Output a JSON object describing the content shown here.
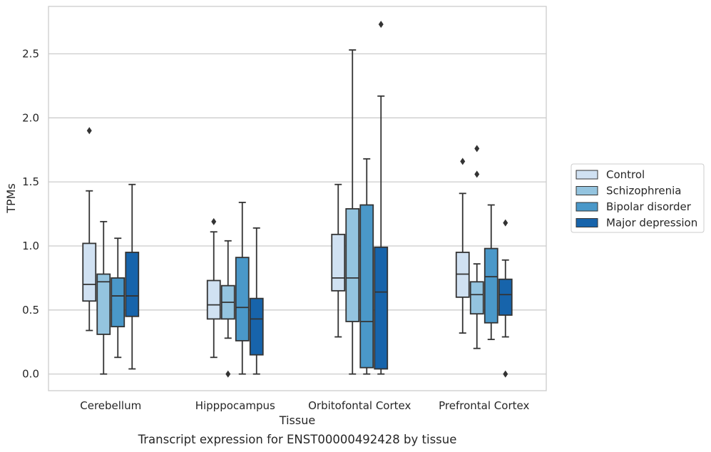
{
  "caption": "Transcript expression for ENST00000492428 by tissue",
  "chart_data": {
    "type": "box",
    "title": "",
    "xlabel": "Tissue",
    "ylabel": "TPMs",
    "ylim": [
      -0.13,
      2.87
    ],
    "yticks": [
      0.0,
      0.5,
      1.0,
      1.5,
      2.0,
      2.5
    ],
    "ytick_labels": [
      "0.0",
      "0.5",
      "1.0",
      "1.5",
      "2.0",
      "2.5"
    ],
    "grid": "horizontal",
    "legend_position": "outside-right",
    "categories": [
      "Cerebellum",
      "Hipppocampus",
      "Orbitofontal Cortex",
      "Prefrontal Cortex"
    ],
    "series": [
      {
        "name": "Control",
        "color": "#d0e1f2",
        "boxes": [
          {
            "whisker_low": 0.34,
            "q1": 0.57,
            "median": 0.7,
            "q3": 1.02,
            "whisker_high": 1.43,
            "outliers": [
              1.9
            ]
          },
          {
            "whisker_low": 0.13,
            "q1": 0.43,
            "median": 0.54,
            "q3": 0.73,
            "whisker_high": 1.11,
            "outliers": [
              1.19
            ]
          },
          {
            "whisker_low": 0.29,
            "q1": 0.65,
            "median": 0.75,
            "q3": 1.09,
            "whisker_high": 1.48,
            "outliers": []
          },
          {
            "whisker_low": 0.32,
            "q1": 0.6,
            "median": 0.78,
            "q3": 0.95,
            "whisker_high": 1.41,
            "outliers": [
              1.66
            ]
          }
        ]
      },
      {
        "name": "Schizophrenia",
        "color": "#94c4df",
        "boxes": [
          {
            "whisker_low": 0.0,
            "q1": 0.31,
            "median": 0.72,
            "q3": 0.78,
            "whisker_high": 1.19,
            "outliers": []
          },
          {
            "whisker_low": 0.28,
            "q1": 0.43,
            "median": 0.56,
            "q3": 0.69,
            "whisker_high": 1.04,
            "outliers": [
              0.0
            ]
          },
          {
            "whisker_low": 0.0,
            "q1": 0.41,
            "median": 0.75,
            "q3": 1.29,
            "whisker_high": 2.53,
            "outliers": []
          },
          {
            "whisker_low": 0.2,
            "q1": 0.47,
            "median": 0.62,
            "q3": 0.72,
            "whisker_high": 0.86,
            "outliers": [
              1.56,
              1.76
            ]
          }
        ]
      },
      {
        "name": "Bipolar disorder",
        "color": "#4a98c9",
        "boxes": [
          {
            "whisker_low": 0.13,
            "q1": 0.37,
            "median": 0.61,
            "q3": 0.75,
            "whisker_high": 1.06,
            "outliers": []
          },
          {
            "whisker_low": 0.0,
            "q1": 0.26,
            "median": 0.52,
            "q3": 0.91,
            "whisker_high": 1.34,
            "outliers": []
          },
          {
            "whisker_low": 0.0,
            "q1": 0.05,
            "median": 0.41,
            "q3": 1.32,
            "whisker_high": 1.68,
            "outliers": []
          },
          {
            "whisker_low": 0.27,
            "q1": 0.4,
            "median": 0.76,
            "q3": 0.98,
            "whisker_high": 1.32,
            "outliers": []
          }
        ]
      },
      {
        "name": "Major depression",
        "color": "#1764ab",
        "boxes": [
          {
            "whisker_low": 0.04,
            "q1": 0.45,
            "median": 0.61,
            "q3": 0.95,
            "whisker_high": 1.48,
            "outliers": []
          },
          {
            "whisker_low": 0.0,
            "q1": 0.15,
            "median": 0.43,
            "q3": 0.59,
            "whisker_high": 1.14,
            "outliers": []
          },
          {
            "whisker_low": 0.0,
            "q1": 0.04,
            "median": 0.64,
            "q3": 0.99,
            "whisker_high": 2.17,
            "outliers": [
              2.73
            ]
          },
          {
            "whisker_low": 0.29,
            "q1": 0.46,
            "median": 0.62,
            "q3": 0.74,
            "whisker_high": 0.89,
            "outliers": [
              0.0,
              1.18
            ]
          }
        ]
      }
    ]
  }
}
